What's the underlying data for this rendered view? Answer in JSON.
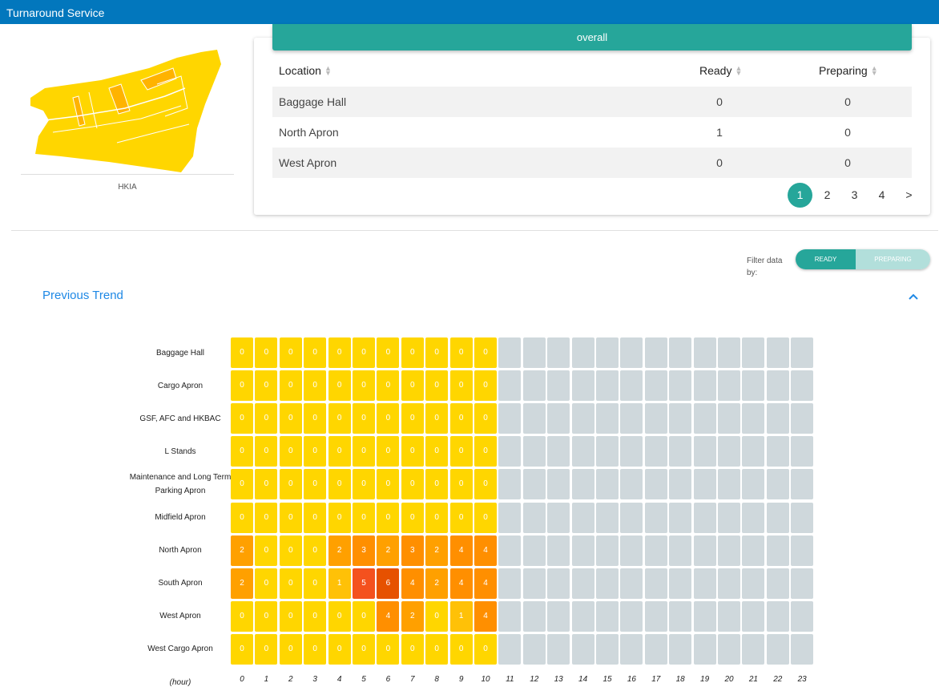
{
  "app": {
    "title": "Turnaround Service"
  },
  "map": {
    "label": "HKIA"
  },
  "overall": {
    "header": "overall",
    "columns": {
      "location": "Location",
      "ready": "Ready",
      "preparing": "Preparing"
    },
    "rows": [
      {
        "location": "Baggage Hall",
        "ready": "0",
        "preparing": "0"
      },
      {
        "location": "North Apron",
        "ready": "1",
        "preparing": "0"
      },
      {
        "location": "West Apron",
        "ready": "0",
        "preparing": "0"
      }
    ],
    "pages": [
      "1",
      "2",
      "3",
      "4"
    ],
    "next_label": ">",
    "current_page": "1"
  },
  "filter": {
    "label": "Filter data by:",
    "options": [
      "READY",
      "PREPARING"
    ],
    "selected": "READY"
  },
  "trend": {
    "title": "Previous Trend"
  },
  "chart_data": {
    "type": "heatmap",
    "rows": [
      "Baggage Hall",
      "Cargo Apron",
      "GSF, AFC and HKBAC",
      "L Stands",
      "Maintenance and Long Term Parking Apron",
      "Midfield Apron",
      "North Apron",
      "South Apron",
      "West Apron",
      "West Cargo Apron"
    ],
    "x": [
      "0",
      "1",
      "2",
      "3",
      "4",
      "5",
      "6",
      "7",
      "8",
      "9",
      "10",
      "11",
      "12",
      "13",
      "14",
      "15",
      "16",
      "17",
      "18",
      "19",
      "20",
      "21",
      "22",
      "23"
    ],
    "xlabel": "(hour)",
    "values": [
      [
        0,
        0,
        0,
        0,
        0,
        0,
        0,
        0,
        0,
        0,
        0,
        null,
        null,
        null,
        null,
        null,
        null,
        null,
        null,
        null,
        null,
        null,
        null,
        null
      ],
      [
        0,
        0,
        0,
        0,
        0,
        0,
        0,
        0,
        0,
        0,
        0,
        null,
        null,
        null,
        null,
        null,
        null,
        null,
        null,
        null,
        null,
        null,
        null,
        null
      ],
      [
        0,
        0,
        0,
        0,
        0,
        0,
        0,
        0,
        0,
        0,
        0,
        null,
        null,
        null,
        null,
        null,
        null,
        null,
        null,
        null,
        null,
        null,
        null,
        null
      ],
      [
        0,
        0,
        0,
        0,
        0,
        0,
        0,
        0,
        0,
        0,
        0,
        null,
        null,
        null,
        null,
        null,
        null,
        null,
        null,
        null,
        null,
        null,
        null,
        null
      ],
      [
        0,
        0,
        0,
        0,
        0,
        0,
        0,
        0,
        0,
        0,
        0,
        null,
        null,
        null,
        null,
        null,
        null,
        null,
        null,
        null,
        null,
        null,
        null,
        null
      ],
      [
        0,
        0,
        0,
        0,
        0,
        0,
        0,
        0,
        0,
        0,
        0,
        null,
        null,
        null,
        null,
        null,
        null,
        null,
        null,
        null,
        null,
        null,
        null,
        null
      ],
      [
        2,
        0,
        0,
        0,
        2,
        3,
        2,
        3,
        2,
        4,
        4,
        null,
        null,
        null,
        null,
        null,
        null,
        null,
        null,
        null,
        null,
        null,
        null,
        null
      ],
      [
        2,
        0,
        0,
        0,
        1,
        5,
        6,
        4,
        2,
        4,
        4,
        null,
        null,
        null,
        null,
        null,
        null,
        null,
        null,
        null,
        null,
        null,
        null,
        null
      ],
      [
        0,
        0,
        0,
        0,
        0,
        0,
        4,
        2,
        0,
        1,
        4,
        null,
        null,
        null,
        null,
        null,
        null,
        null,
        null,
        null,
        null,
        null,
        null,
        null
      ],
      [
        0,
        0,
        0,
        0,
        0,
        0,
        0,
        0,
        0,
        0,
        0,
        null,
        null,
        null,
        null,
        null,
        null,
        null,
        null,
        null,
        null,
        null,
        null,
        null
      ]
    ],
    "colors": {
      "zero": "#ffd600",
      "empty": "#cfd8dc",
      "low": "#ffc107",
      "mid": "#ffa000",
      "high": "#ff8f00",
      "max": "#f4511e",
      "top": "#e65100"
    }
  }
}
